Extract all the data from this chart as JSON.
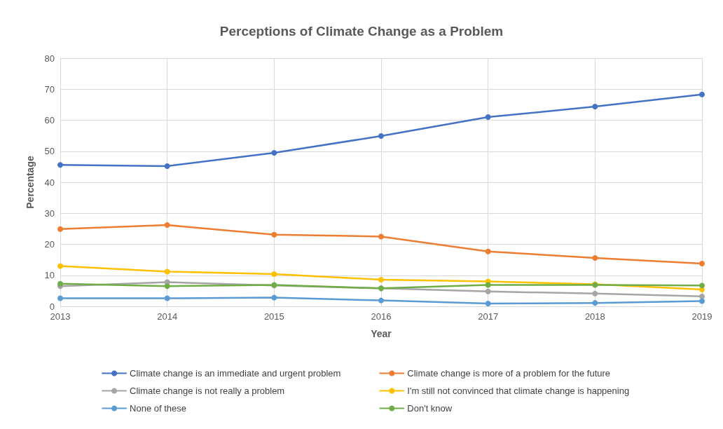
{
  "chart_data": {
    "type": "line",
    "title": "Perceptions of Climate Change as a Problem",
    "xlabel": "Year",
    "ylabel": "Percentage",
    "categories": [
      "2013",
      "2014",
      "2015",
      "2016",
      "2017",
      "2018",
      "2019"
    ],
    "ylim": [
      0,
      80
    ],
    "yticks": [
      0,
      10,
      20,
      30,
      40,
      50,
      60,
      70,
      80
    ],
    "grid": true,
    "legend": "bottom",
    "marker": "circle",
    "line_style": "solid",
    "series": [
      {
        "name": "Climate change is an immediate and urgent problem",
        "color": "#4472c4",
        "values": [
          45.6,
          45.2,
          49.5,
          54.9,
          61,
          64.4,
          68.3
        ]
      },
      {
        "name": "Climate change is more of a problem for the future",
        "color": "#ed7d31",
        "values": [
          24.9,
          26.2,
          23.1,
          22.5,
          17.7,
          15.6,
          13.8
        ]
      },
      {
        "name": "Climate change is not really a problem",
        "color": "#a5a5a5",
        "values": [
          6.5,
          7.8,
          6.7,
          5.8,
          4.8,
          4.1,
          3.2
        ]
      },
      {
        "name": "I'm still not convinced that climate change is happening",
        "color": "#ffc000",
        "values": [
          13,
          11.2,
          10.4,
          8.6,
          8,
          7.1,
          5.4
        ]
      },
      {
        "name": "None of these",
        "color": "#5b9bd5",
        "values": [
          2.6,
          2.6,
          2.8,
          1.9,
          0.9,
          1.1,
          1.7
        ]
      },
      {
        "name": "Don't know",
        "color": "#70ad47",
        "values": [
          7.3,
          6.5,
          6.9,
          5.8,
          6.9,
          6.9,
          6.7
        ]
      }
    ]
  }
}
